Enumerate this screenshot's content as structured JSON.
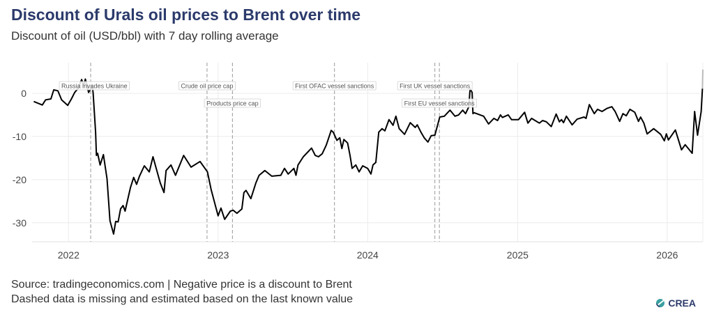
{
  "title": "Discount of Urals oil prices to Brent over time",
  "subtitle": "Discount of oil (USD/bbl) with 7 day rolling average",
  "caption_line1": "Source: tradingeconomics.com | Negative price is a discount to Brent",
  "caption_line2": "Dashed data is missing and estimated based on the last known value",
  "logo_text": "CREA",
  "colors": {
    "title": "#2b3a6b",
    "line": "#000000",
    "estimated": "#bbbbbb",
    "grid": "#ebebeb",
    "event_line": "#999999"
  },
  "chart_data": {
    "type": "line",
    "xlim": [
      "2021-10-04",
      "2026-03-29"
    ],
    "ylim": [
      -34.4,
      7.1
    ],
    "grid": true,
    "x_ticks": [
      "2022",
      "2023",
      "2024",
      "2025",
      "2026"
    ],
    "y_ticks": [
      0,
      -10,
      -20,
      -30
    ],
    "series": [
      {
        "points": [
          [
            "2021-10-08",
            -1.9
          ],
          [
            "2021-10-29",
            -2.7
          ],
          [
            "2021-11-06",
            -1.5
          ],
          [
            "2021-11-19",
            -1.3
          ],
          [
            "2021-11-26",
            0.8
          ],
          [
            "2021-12-06",
            0.6
          ],
          [
            "2021-12-15",
            -1.5
          ],
          [
            "2021-12-30",
            -2.8
          ],
          [
            "2022-01-08",
            -1.3
          ],
          [
            "2022-01-16",
            0.2
          ],
          [
            "2022-01-24",
            1.1
          ],
          [
            "2022-02-02",
            3.2
          ],
          [
            "2022-02-07",
            1.8
          ],
          [
            "2022-02-11",
            3.3
          ],
          [
            "2022-02-19",
            0.2
          ],
          [
            "2022-02-28",
            1.8
          ],
          [
            "2022-03-02",
            0
          ],
          [
            "2022-03-08",
            -9
          ],
          [
            "2022-03-10",
            -14.4
          ],
          [
            "2022-03-13",
            -13.9
          ],
          [
            "2022-03-19",
            -16.6
          ],
          [
            "2022-03-27",
            -14.2
          ],
          [
            "2022-04-05",
            -19.8
          ],
          [
            "2022-04-12",
            -29.5
          ],
          [
            "2022-04-21",
            -32.6
          ],
          [
            "2022-04-26",
            -29.7
          ],
          [
            "2022-05-02",
            -29.8
          ],
          [
            "2022-05-08",
            -26.8
          ],
          [
            "2022-05-14",
            -26
          ],
          [
            "2022-05-19",
            -27.3
          ],
          [
            "2022-06-01",
            -21.9
          ],
          [
            "2022-06-09",
            -19.5
          ],
          [
            "2022-06-16",
            -21.1
          ],
          [
            "2022-06-23",
            -19.2
          ],
          [
            "2022-07-05",
            -16.8
          ],
          [
            "2022-07-17",
            -18.2
          ],
          [
            "2022-07-26",
            -14.7
          ],
          [
            "2022-08-13",
            -20.8
          ],
          [
            "2022-08-22",
            -23
          ],
          [
            "2022-08-27",
            -17.9
          ],
          [
            "2022-09-08",
            -16.6
          ],
          [
            "2022-09-19",
            -19
          ],
          [
            "2022-10-09",
            -14.4
          ],
          [
            "2022-10-27",
            -17.1
          ],
          [
            "2022-11-18",
            -15.8
          ],
          [
            "2022-12-06",
            -18.2
          ],
          [
            "2022-12-15",
            -22.3
          ],
          [
            "2023-01-01",
            -28.4
          ],
          [
            "2023-01-08",
            -26.6
          ],
          [
            "2023-01-17",
            -29.2
          ],
          [
            "2023-01-31",
            -27.3
          ],
          [
            "2023-02-07",
            -27.1
          ],
          [
            "2023-02-16",
            -27.8
          ],
          [
            "2023-02-28",
            -26.8
          ],
          [
            "2023-03-05",
            -23
          ],
          [
            "2023-03-10",
            -22.5
          ],
          [
            "2023-03-22",
            -24.4
          ],
          [
            "2023-04-03",
            -20.8
          ],
          [
            "2023-04-11",
            -19
          ],
          [
            "2023-04-25",
            -17.9
          ],
          [
            "2023-05-12",
            -19.2
          ],
          [
            "2023-06-03",
            -19
          ],
          [
            "2023-06-12",
            -17.4
          ],
          [
            "2023-06-21",
            -18.7
          ],
          [
            "2023-07-05",
            -17.4
          ],
          [
            "2023-07-10",
            -19
          ],
          [
            "2023-07-15",
            -16.6
          ],
          [
            "2023-07-28",
            -14.7
          ],
          [
            "2023-08-17",
            -12.7
          ],
          [
            "2023-08-26",
            -14.4
          ],
          [
            "2023-09-03",
            -14.7
          ],
          [
            "2023-09-12",
            -14
          ],
          [
            "2023-09-22",
            -12
          ],
          [
            "2023-10-04",
            -8.6
          ],
          [
            "2023-10-09",
            -9
          ],
          [
            "2023-10-18",
            -10.9
          ],
          [
            "2023-10-25",
            -10.3
          ],
          [
            "2023-10-30",
            -12.8
          ],
          [
            "2023-11-04",
            -10.7
          ],
          [
            "2023-11-13",
            -11.5
          ],
          [
            "2023-11-19",
            -14.4
          ],
          [
            "2023-11-24",
            -17.4
          ],
          [
            "2023-12-03",
            -16.6
          ],
          [
            "2023-12-11",
            -18.2
          ],
          [
            "2023-12-20",
            -16.8
          ],
          [
            "2024-01-01",
            -17.4
          ],
          [
            "2024-01-09",
            -18.7
          ],
          [
            "2024-01-14",
            -16.6
          ],
          [
            "2024-01-21",
            -16
          ],
          [
            "2024-01-28",
            -9
          ],
          [
            "2024-02-05",
            -8.2
          ],
          [
            "2024-02-12",
            -8.7
          ],
          [
            "2024-02-22",
            -6.1
          ],
          [
            "2024-03-03",
            -7.4
          ],
          [
            "2024-03-10",
            -5.3
          ],
          [
            "2024-03-18",
            -8.2
          ],
          [
            "2024-03-31",
            -9.5
          ],
          [
            "2024-04-14",
            -6.8
          ],
          [
            "2024-04-26",
            -7.9
          ],
          [
            "2024-05-01",
            -7.3
          ],
          [
            "2024-05-10",
            -9
          ],
          [
            "2024-05-18",
            -10.3
          ],
          [
            "2024-05-27",
            -11.3
          ],
          [
            "2024-06-04",
            -9.8
          ],
          [
            "2024-06-13",
            -9.7
          ],
          [
            "2024-06-25",
            -5.5
          ],
          [
            "2024-07-06",
            -5.3
          ],
          [
            "2024-07-20",
            -3.9
          ],
          [
            "2024-08-01",
            -5.3
          ],
          [
            "2024-08-10",
            -5
          ],
          [
            "2024-08-20",
            -3.9
          ],
          [
            "2024-08-27",
            -4.7
          ],
          [
            "2024-09-04",
            -3.1
          ],
          [
            "2024-09-07",
            1.1
          ],
          [
            "2024-09-12",
            0.2
          ],
          [
            "2024-09-14",
            -4.7
          ],
          [
            "2024-09-17",
            -4.5
          ],
          [
            "2024-10-10",
            -5.3
          ],
          [
            "2024-10-22",
            -7.1
          ],
          [
            "2024-11-04",
            -5.8
          ],
          [
            "2024-11-13",
            -6.3
          ],
          [
            "2024-11-20",
            -5
          ],
          [
            "2024-11-25",
            -5.6
          ],
          [
            "2024-12-09",
            -5
          ],
          [
            "2024-12-17",
            -6.1
          ],
          [
            "2025-01-03",
            -6.1
          ],
          [
            "2025-01-18",
            -4.4
          ],
          [
            "2025-01-26",
            -6.9
          ],
          [
            "2025-02-04",
            -5.8
          ],
          [
            "2025-02-23",
            -6.9
          ],
          [
            "2025-03-03",
            -6.3
          ],
          [
            "2025-03-12",
            -6.6
          ],
          [
            "2025-03-24",
            -7.7
          ],
          [
            "2025-04-05",
            -4.8
          ],
          [
            "2025-04-13",
            -6.6
          ],
          [
            "2025-04-18",
            -6.1
          ],
          [
            "2025-04-23",
            -6.8
          ],
          [
            "2025-04-30",
            -5.3
          ],
          [
            "2025-05-14",
            -7.3
          ],
          [
            "2025-05-26",
            -6
          ],
          [
            "2025-06-12",
            -5.5
          ],
          [
            "2025-06-17",
            -5.8
          ],
          [
            "2025-06-25",
            -2.6
          ],
          [
            "2025-07-07",
            -4.7
          ],
          [
            "2025-07-15",
            -3.7
          ],
          [
            "2025-07-26",
            -4.2
          ],
          [
            "2025-08-07",
            -3.5
          ],
          [
            "2025-08-19",
            -3.1
          ],
          [
            "2025-08-27",
            -4.2
          ],
          [
            "2025-09-07",
            -6.5
          ],
          [
            "2025-09-15",
            -4.7
          ],
          [
            "2025-09-23",
            -5.2
          ],
          [
            "2025-10-02",
            -3.7
          ],
          [
            "2025-10-14",
            -4.4
          ],
          [
            "2025-10-23",
            -6.5
          ],
          [
            "2025-10-28",
            -5.5
          ],
          [
            "2025-11-05",
            -6.9
          ],
          [
            "2025-11-13",
            -9.4
          ],
          [
            "2025-11-29",
            -8.2
          ],
          [
            "2025-12-16",
            -9.5
          ],
          [
            "2025-12-25",
            -11
          ],
          [
            "2025-12-30",
            -9.4
          ],
          [
            "2026-01-04",
            -10.8
          ],
          [
            "2026-01-21",
            -8.5
          ],
          [
            "2026-02-05",
            -13.1
          ],
          [
            "2026-02-14",
            -11.9
          ],
          [
            "2026-03-03",
            -13.9
          ],
          [
            "2026-03-09",
            -4.2
          ],
          [
            "2026-03-16",
            -9.7
          ],
          [
            "2026-03-25",
            -4.2
          ],
          [
            "2026-03-28",
            1.1
          ]
        ]
      },
      {
        "estimated": true,
        "points": [
          [
            "2026-03-28",
            1.1
          ],
          [
            "2026-03-29",
            5.5
          ]
        ]
      }
    ],
    "annotations": [
      {
        "date": "2022-02-24",
        "label": "Russia invades Ukraine",
        "row": 1,
        "anchor": "start"
      },
      {
        "date": "2022-12-05",
        "label": "Crude oil price cap",
        "row": 1,
        "anchor": "middle"
      },
      {
        "date": "2023-02-05",
        "label": "Products price cap",
        "row": 2,
        "anchor": "middle"
      },
      {
        "date": "2023-10-12",
        "label": "First OFAC vessel sanctions",
        "row": 1,
        "anchor": "middle"
      },
      {
        "date": "2024-06-13",
        "label": "First UK vessel sanctions",
        "row": 1,
        "anchor": "middle"
      },
      {
        "date": "2024-06-24",
        "label": "First EU vessel sanctions",
        "row": 2,
        "anchor": "middle"
      }
    ]
  }
}
